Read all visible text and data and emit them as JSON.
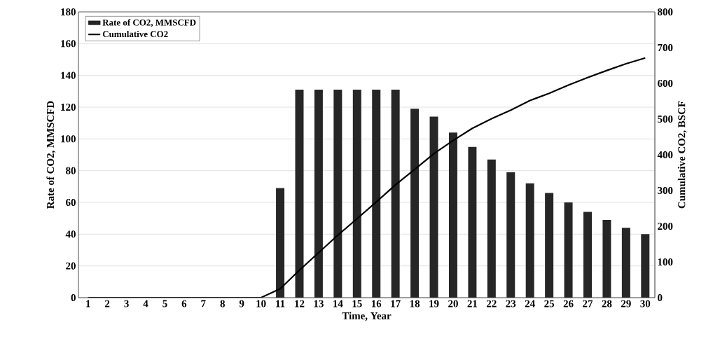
{
  "chart_data": {
    "type": "bar",
    "categories": [
      "1",
      "2",
      "3",
      "4",
      "5",
      "6",
      "7",
      "8",
      "9",
      "10",
      "11",
      "12",
      "13",
      "14",
      "15",
      "16",
      "17",
      "18",
      "19",
      "20",
      "21",
      "22",
      "23",
      "24",
      "25",
      "26",
      "27",
      "28",
      "29",
      "30"
    ],
    "series": [
      {
        "name": "Rate of CO2, MMSCFD",
        "color": "#262626",
        "values": [
          0,
          0,
          0,
          0,
          0,
          0,
          0,
          0,
          0,
          0,
          69,
          131,
          131,
          131,
          131,
          131,
          131,
          119,
          114,
          104,
          95,
          87,
          79,
          72,
          66,
          60,
          54,
          49,
          44,
          40
        ]
      },
      {
        "name": "Cumulative CO2",
        "type": "line",
        "axis": "y2",
        "color": "#000000",
        "values": [
          0,
          0,
          0,
          0,
          0,
          0,
          0,
          0,
          0,
          0,
          25,
          77,
          126,
          175,
          221,
          268,
          316,
          359,
          403,
          440,
          474,
          501,
          525,
          552,
          572,
          595,
          616,
          636,
          655,
          671
        ]
      }
    ],
    "xlabel": "Time, Year",
    "ylabel": "Rate of CO2, MMSCFD",
    "y2label": "Cumulative CO2, BSCF",
    "ylim": [
      0,
      180
    ],
    "yticks": [
      0,
      20,
      40,
      60,
      80,
      100,
      120,
      140,
      160,
      180
    ],
    "y2lim": [
      0,
      800
    ],
    "y2ticks": [
      0,
      100,
      200,
      300,
      400,
      500,
      600,
      700,
      800
    ],
    "grid": "y",
    "legend": "top left"
  }
}
